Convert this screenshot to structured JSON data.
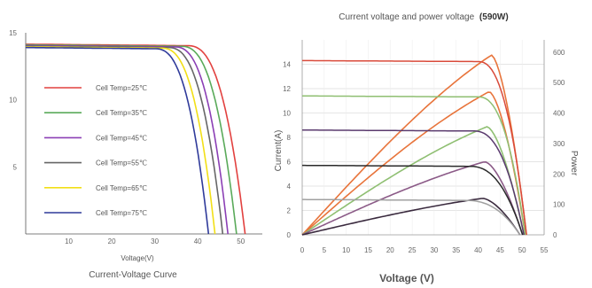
{
  "colors": {
    "temp25": "#e2413f",
    "temp35": "#5aaa5a",
    "temp45": "#8b3fb5",
    "temp55": "#666666",
    "temp65": "#f2df17",
    "temp75": "#2f3a9a",
    "right_current_lines": "#555555",
    "right_power_curves": [
      "#e8743b",
      "#e8743b",
      "#8fbf72",
      "#8b5a87",
      "#3a2a3e",
      "#a0a0a0"
    ],
    "right_current_highlight": "#d94a3a"
  },
  "chart_data": [
    {
      "type": "line",
      "title": "Current-Voltage Curve",
      "xlabel": "Voltage(V)",
      "ylabel": "",
      "xlim": [
        0,
        55
      ],
      "ylim": [
        0,
        15
      ],
      "x_ticks": [
        10,
        20,
        30,
        40,
        50
      ],
      "y_ticks": [
        5,
        10,
        15
      ],
      "legend_position": "left",
      "series": [
        {
          "name": "Cell Temp=25℃",
          "color_key": "temp25",
          "isc": 14.15,
          "voc": 51.0,
          "knee": 37.5
        },
        {
          "name": "Cell Temp=35℃",
          "color_key": "temp35",
          "isc": 14.1,
          "voc": 49.0,
          "knee": 36.0
        },
        {
          "name": "Cell Temp=45℃",
          "color_key": "temp45",
          "isc": 14.05,
          "voc": 47.0,
          "knee": 34.5
        },
        {
          "name": "Cell Temp=55℃",
          "color_key": "temp55",
          "isc": 14.0,
          "voc": 45.8,
          "knee": 33.0
        },
        {
          "name": "Cell Temp=65℃",
          "color_key": "temp65",
          "isc": 13.95,
          "voc": 44.0,
          "knee": 31.5
        },
        {
          "name": "Cell Temp=75℃",
          "color_key": "temp75",
          "isc": 13.9,
          "voc": 42.5,
          "knee": 30.0
        }
      ]
    },
    {
      "type": "line",
      "title": "Current voltage and power voltage",
      "title_emph": "(590W)",
      "xlabel": "Voltage (V)",
      "ylabel": "Current(A)",
      "y2label": "Power",
      "xlim": [
        0,
        55
      ],
      "ylim": [
        0,
        16
      ],
      "y2lim": [
        0,
        640
      ],
      "x_ticks": [
        0,
        5,
        10,
        15,
        20,
        25,
        30,
        35,
        40,
        45,
        50,
        55
      ],
      "y_ticks": [
        0,
        2,
        4,
        6,
        8,
        10,
        12,
        14
      ],
      "y2_ticks": [
        0,
        100,
        200,
        300,
        400,
        500,
        600
      ],
      "grid": true,
      "current_series": [
        {
          "isc": 14.3,
          "knee": 40.0,
          "voc": 51.0
        },
        {
          "isc": 11.4,
          "knee": 40.0,
          "voc": 50.7
        },
        {
          "isc": 8.6,
          "knee": 39.0,
          "voc": 50.4
        },
        {
          "isc": 5.7,
          "knee": 38.0,
          "voc": 50.1
        },
        {
          "isc": 2.9,
          "knee": 37.0,
          "voc": 49.5
        }
      ],
      "power_series": [
        {
          "pmax": 590,
          "vmp": 43.0,
          "voc": 51.0
        },
        {
          "pmax": 470,
          "vmp": 42.5,
          "voc": 50.7
        },
        {
          "pmax": 355,
          "vmp": 42.0,
          "voc": 50.4
        },
        {
          "pmax": 240,
          "vmp": 41.5,
          "voc": 50.1
        },
        {
          "pmax": 120,
          "vmp": 41.0,
          "voc": 49.5
        }
      ]
    }
  ]
}
